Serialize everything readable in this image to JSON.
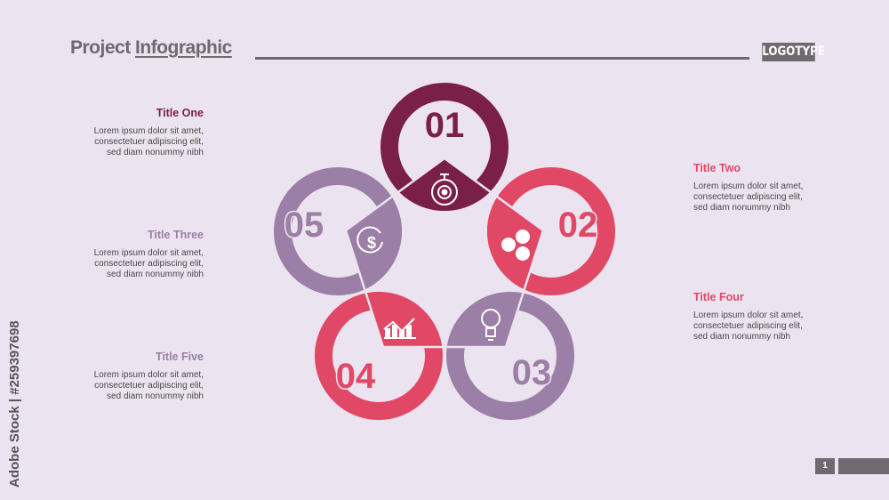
{
  "header": {
    "title_part1": "Project ",
    "title_part2": "Infographic",
    "logo": "LOGOTYPE"
  },
  "colors": {
    "background": "#ebe3ef",
    "maroon": "#7a1f48",
    "red": "#e04866",
    "purple": "#9b7fa6",
    "gray": "#6e6a70"
  },
  "steps": [
    {
      "number": "01",
      "title": "Title One",
      "icon": "stopwatch-gear-icon",
      "color": "#7a1f48",
      "body": [
        "Lorem ipsum dolor sit amet,",
        "consectetuer adipiscing elit,",
        "sed diam nonummy nibh"
      ]
    },
    {
      "number": "02",
      "title": "Title Two",
      "icon": "speech-bubbles-icon",
      "color": "#e04866",
      "body": [
        "Lorem ipsum dolor sit amet,",
        "consectetuer adipiscing elit,",
        "sed diam nonummy nibh"
      ]
    },
    {
      "number": "03",
      "title": "Title Four",
      "icon": "lightbulb-icon",
      "color": "#9b7fa6",
      "body": [
        "Lorem ipsum dolor sit amet,",
        "consectetuer adipiscing elit,",
        "sed diam nonummy nibh"
      ]
    },
    {
      "number": "04",
      "title": "Title Five",
      "icon": "bar-chart-icon",
      "color": "#e04866",
      "body": [
        "Lorem ipsum dolor sit amet,",
        "consectetuer adipiscing elit,",
        "sed diam nonummy nibh"
      ]
    },
    {
      "number": "05",
      "title": "Title Three",
      "icon": "dollar-cycle-icon",
      "color": "#9b7fa6",
      "body": [
        "Lorem ipsum dolor sit amet,",
        "consectetuer adipiscing elit,",
        "sed diam nonummy nibh"
      ]
    }
  ],
  "footer": {
    "page_number": "1"
  },
  "watermark": {
    "side_text": "Adobe Stock | #259397698",
    "tile_text": "Adobe Stock"
  }
}
